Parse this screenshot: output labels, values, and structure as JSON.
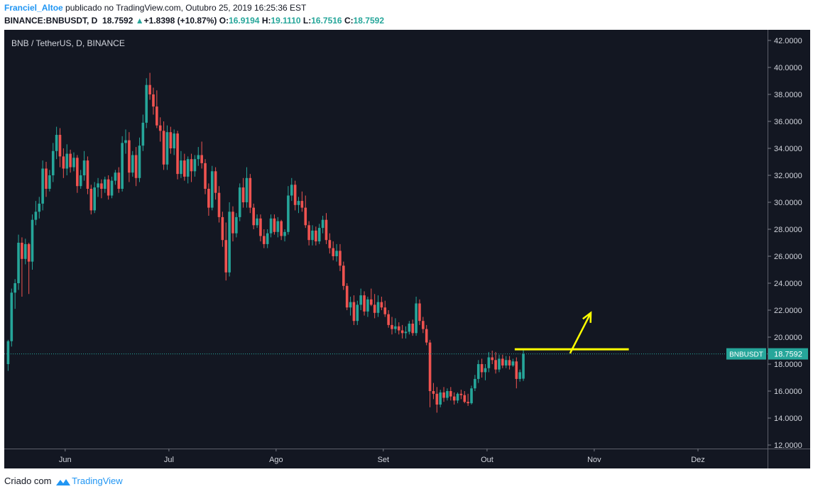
{
  "header": {
    "author": "Franciel_Altoe",
    "published": "publicado no TradingView.com, Outubro 25, 2019 16:25:36 EST",
    "symbol": "BINANCE:BNBUSDT, D",
    "last": "18.7592",
    "change_arrow": "▲",
    "change": "+1.8398 (+10.87%)",
    "open_label": "O:",
    "open": "16.9194",
    "high_label": "H:",
    "high": "19.1110",
    "low_label": "L:",
    "low": "16.7516",
    "close_label": "C:",
    "close": "18.7592"
  },
  "chart_title": "BNB / TetherUS, D, BINANCE",
  "footer": {
    "prefix": "Criado com",
    "brand": "TradingView",
    "logo_icon": "tradingview-logo-icon"
  },
  "colors": {
    "bull": "#26a69a",
    "bear": "#ef5350",
    "background": "#131722",
    "annotation": "#ffff00",
    "text": "#d1d4dc"
  },
  "chart_data": {
    "type": "candlestick",
    "symbol": "BNBUSDT",
    "timeframe": "D",
    "x_tick_labels": [
      "Jun",
      "Jul",
      "Ago",
      "Set",
      "Out",
      "Nov",
      "Dez"
    ],
    "y_tick_labels": [
      "12.0000",
      "14.0000",
      "16.0000",
      "18.0000",
      "20.0000",
      "22.0000",
      "24.0000",
      "26.0000",
      "28.0000",
      "30.0000",
      "32.0000",
      "34.0000",
      "36.0000",
      "38.0000",
      "40.0000",
      "42.0000"
    ],
    "ylim": [
      12,
      42
    ],
    "grid": false,
    "x_start": "2019-05-15",
    "last_price": {
      "label": "BNBUSDT",
      "value": "18.7592"
    },
    "annotations": {
      "resistance_line": {
        "y": 19.1,
        "x_from": "2019-10-09",
        "x_to": "2019-11-11"
      },
      "arrow": {
        "from_date": "2019-10-25",
        "from_y": 18.8,
        "to_date": "2019-10-31",
        "to_y": 21.8
      }
    },
    "ohlc": [
      [
        18.0,
        19.8,
        17.5,
        19.7
      ],
      [
        19.7,
        23.6,
        19.3,
        23.3
      ],
      [
        23.3,
        24.3,
        22.1,
        24.0
      ],
      [
        24.0,
        27.6,
        23.5,
        27.0
      ],
      [
        27.0,
        27.4,
        23.0,
        25.8
      ],
      [
        25.8,
        27.3,
        25.4,
        26.9
      ],
      [
        26.9,
        27.0,
        23.2,
        25.6
      ],
      [
        25.6,
        29.1,
        25.0,
        28.7
      ],
      [
        28.7,
        30.1,
        28.3,
        29.3
      ],
      [
        29.3,
        30.4,
        28.8,
        29.9
      ],
      [
        29.9,
        33.1,
        29.4,
        32.5
      ],
      [
        32.5,
        33.0,
        30.4,
        31.0
      ],
      [
        31.0,
        32.4,
        30.8,
        32.0
      ],
      [
        32.0,
        34.4,
        31.5,
        33.8
      ],
      [
        33.8,
        35.6,
        33.2,
        35.0
      ],
      [
        35.0,
        35.5,
        32.6,
        33.4
      ],
      [
        33.4,
        34.0,
        31.8,
        32.5
      ],
      [
        32.5,
        34.3,
        32.0,
        33.6
      ],
      [
        33.6,
        33.9,
        32.2,
        32.6
      ],
      [
        32.6,
        33.7,
        32.3,
        33.3
      ],
      [
        33.3,
        33.5,
        30.7,
        31.2
      ],
      [
        31.2,
        32.4,
        31.0,
        32.0
      ],
      [
        32.0,
        33.8,
        31.6,
        33.1
      ],
      [
        33.1,
        33.4,
        30.6,
        31.0
      ],
      [
        31.0,
        31.3,
        29.1,
        29.4
      ],
      [
        29.4,
        31.5,
        29.2,
        31.1
      ],
      [
        31.1,
        31.8,
        30.4,
        31.4
      ],
      [
        31.4,
        31.7,
        30.3,
        31.0
      ],
      [
        31.0,
        31.9,
        30.7,
        31.7
      ],
      [
        31.7,
        32.0,
        30.2,
        30.5
      ],
      [
        30.5,
        31.9,
        30.3,
        31.6
      ],
      [
        31.6,
        32.4,
        31.3,
        32.2
      ],
      [
        32.2,
        32.6,
        30.7,
        31.0
      ],
      [
        31.0,
        34.9,
        30.8,
        34.4
      ],
      [
        34.4,
        35.4,
        33.6,
        34.6
      ],
      [
        34.6,
        35.2,
        31.5,
        32.2
      ],
      [
        32.2,
        33.8,
        31.9,
        33.5
      ],
      [
        33.5,
        34.1,
        31.2,
        31.8
      ],
      [
        31.8,
        34.8,
        31.5,
        34.2
      ],
      [
        34.2,
        36.5,
        33.8,
        35.9
      ],
      [
        35.9,
        39.2,
        35.5,
        38.7
      ],
      [
        38.7,
        39.6,
        37.6,
        38.0
      ],
      [
        38.0,
        38.5,
        36.5,
        37.1
      ],
      [
        37.1,
        38.3,
        35.5,
        35.7
      ],
      [
        35.7,
        36.3,
        34.5,
        35.3
      ],
      [
        35.3,
        36.0,
        32.4,
        32.8
      ],
      [
        32.8,
        35.7,
        32.4,
        35.2
      ],
      [
        35.2,
        35.6,
        33.6,
        34.0
      ],
      [
        34.0,
        35.4,
        33.5,
        35.1
      ],
      [
        35.1,
        35.3,
        31.7,
        32.1
      ],
      [
        32.1,
        33.8,
        31.8,
        33.1
      ],
      [
        33.1,
        33.6,
        31.6,
        31.9
      ],
      [
        31.9,
        33.4,
        31.4,
        33.2
      ],
      [
        33.2,
        33.6,
        31.5,
        32.3
      ],
      [
        32.3,
        33.5,
        31.9,
        33.2
      ],
      [
        33.2,
        34.1,
        32.7,
        33.5
      ],
      [
        33.5,
        34.5,
        32.5,
        32.9
      ],
      [
        32.9,
        33.2,
        30.6,
        31.0
      ],
      [
        31.0,
        31.4,
        29.0,
        29.6
      ],
      [
        29.6,
        32.7,
        29.4,
        32.3
      ],
      [
        32.3,
        32.6,
        30.2,
        30.7
      ],
      [
        30.7,
        31.2,
        28.5,
        28.9
      ],
      [
        28.9,
        29.3,
        26.7,
        27.2
      ],
      [
        27.2,
        28.5,
        24.2,
        24.8
      ],
      [
        24.8,
        30.0,
        24.5,
        29.3
      ],
      [
        29.3,
        29.7,
        27.1,
        27.7
      ],
      [
        27.7,
        29.2,
        27.4,
        28.9
      ],
      [
        28.9,
        31.4,
        28.6,
        31.1
      ],
      [
        31.1,
        31.8,
        29.6,
        30.0
      ],
      [
        30.0,
        32.6,
        29.6,
        31.8
      ],
      [
        31.8,
        32.1,
        29.2,
        29.6
      ],
      [
        29.6,
        29.9,
        28.0,
        28.3
      ],
      [
        28.3,
        29.1,
        28.1,
        28.8
      ],
      [
        28.8,
        29.1,
        27.1,
        27.5
      ],
      [
        27.5,
        28.0,
        26.6,
        26.9
      ],
      [
        26.9,
        28.0,
        26.6,
        27.7
      ],
      [
        27.7,
        29.1,
        27.4,
        28.8
      ],
      [
        28.8,
        29.1,
        27.6,
        27.8
      ],
      [
        27.8,
        28.9,
        27.4,
        28.6
      ],
      [
        28.6,
        28.7,
        27.2,
        27.5
      ],
      [
        27.5,
        28.0,
        27.1,
        27.8
      ],
      [
        27.8,
        31.2,
        27.6,
        30.5
      ],
      [
        30.5,
        31.8,
        30.1,
        31.3
      ],
      [
        31.3,
        31.6,
        29.4,
        29.8
      ],
      [
        29.8,
        30.4,
        29.2,
        30.1
      ],
      [
        30.1,
        30.8,
        29.3,
        29.6
      ],
      [
        29.6,
        30.5,
        28.1,
        28.3
      ],
      [
        28.3,
        28.6,
        26.8,
        27.2
      ],
      [
        27.2,
        28.3,
        26.8,
        27.9
      ],
      [
        27.9,
        28.2,
        26.8,
        27.1
      ],
      [
        27.1,
        28.4,
        26.9,
        28.1
      ],
      [
        28.1,
        29.0,
        27.7,
        28.7
      ],
      [
        28.7,
        29.2,
        26.9,
        27.2
      ],
      [
        27.2,
        27.7,
        26.2,
        26.6
      ],
      [
        26.6,
        27.1,
        25.7,
        26.0
      ],
      [
        26.0,
        26.9,
        25.6,
        26.4
      ],
      [
        26.4,
        26.9,
        24.9,
        25.3
      ],
      [
        25.3,
        25.6,
        23.5,
        23.8
      ],
      [
        23.8,
        24.0,
        22.0,
        22.2
      ],
      [
        22.2,
        23.0,
        21.6,
        22.6
      ],
      [
        22.6,
        23.1,
        20.9,
        21.2
      ],
      [
        21.2,
        22.7,
        20.9,
        22.4
      ],
      [
        22.4,
        23.6,
        22.0,
        23.1
      ],
      [
        23.1,
        23.4,
        21.6,
        21.9
      ],
      [
        21.9,
        23.0,
        21.5,
        22.8
      ],
      [
        22.8,
        23.6,
        22.3,
        22.4
      ],
      [
        22.4,
        23.2,
        21.4,
        21.8
      ],
      [
        21.8,
        23.1,
        21.5,
        22.6
      ],
      [
        22.6,
        23.0,
        22.0,
        22.2
      ],
      [
        22.2,
        22.7,
        21.5,
        21.7
      ],
      [
        21.7,
        22.0,
        20.7,
        20.9
      ],
      [
        20.9,
        21.5,
        20.2,
        20.6
      ],
      [
        20.6,
        21.4,
        20.3,
        20.8
      ],
      [
        20.8,
        21.1,
        20.2,
        20.5
      ],
      [
        20.5,
        20.9,
        19.9,
        20.3
      ],
      [
        20.3,
        20.8,
        19.9,
        20.4
      ],
      [
        20.4,
        21.2,
        20.2,
        21.0
      ],
      [
        21.0,
        21.3,
        20.1,
        20.3
      ],
      [
        20.3,
        23.0,
        20.1,
        22.5
      ],
      [
        22.5,
        22.8,
        20.9,
        21.2
      ],
      [
        21.2,
        21.5,
        20.3,
        20.6
      ],
      [
        20.6,
        20.9,
        19.4,
        19.6
      ],
      [
        19.6,
        19.8,
        14.8,
        16.0
      ],
      [
        16.0,
        16.6,
        15.4,
        15.8
      ],
      [
        15.8,
        16.3,
        14.4,
        15.0
      ],
      [
        15.0,
        16.1,
        14.8,
        15.9
      ],
      [
        15.9,
        16.3,
        15.2,
        15.5
      ],
      [
        15.5,
        16.2,
        15.3,
        16.0
      ],
      [
        16.0,
        16.3,
        15.3,
        15.6
      ],
      [
        15.6,
        15.9,
        15.0,
        15.3
      ],
      [
        15.3,
        15.9,
        15.1,
        15.8
      ],
      [
        15.8,
        16.1,
        15.4,
        15.7
      ],
      [
        15.7,
        16.0,
        15.1,
        15.2
      ],
      [
        15.2,
        15.8,
        14.9,
        15.1
      ],
      [
        15.1,
        16.4,
        15.0,
        16.2
      ],
      [
        16.2,
        17.2,
        16.0,
        16.9
      ],
      [
        16.9,
        18.3,
        16.6,
        18.0
      ],
      [
        18.0,
        18.4,
        17.0,
        17.4
      ],
      [
        17.4,
        18.0,
        16.8,
        17.7
      ],
      [
        17.7,
        18.9,
        17.4,
        18.5
      ],
      [
        18.5,
        19.0,
        18.0,
        18.3
      ],
      [
        18.3,
        18.9,
        17.3,
        17.6
      ],
      [
        17.6,
        18.7,
        17.4,
        18.4
      ],
      [
        18.4,
        18.7,
        17.7,
        17.9
      ],
      [
        17.9,
        18.6,
        17.7,
        18.3
      ],
      [
        18.3,
        18.6,
        17.6,
        17.9
      ],
      [
        17.9,
        18.4,
        17.8,
        18.2
      ],
      [
        18.2,
        18.5,
        16.2,
        16.9
      ],
      [
        16.9,
        17.6,
        16.7,
        17.4
      ],
      [
        16.9194,
        19.111,
        16.7516,
        18.7592
      ]
    ]
  }
}
